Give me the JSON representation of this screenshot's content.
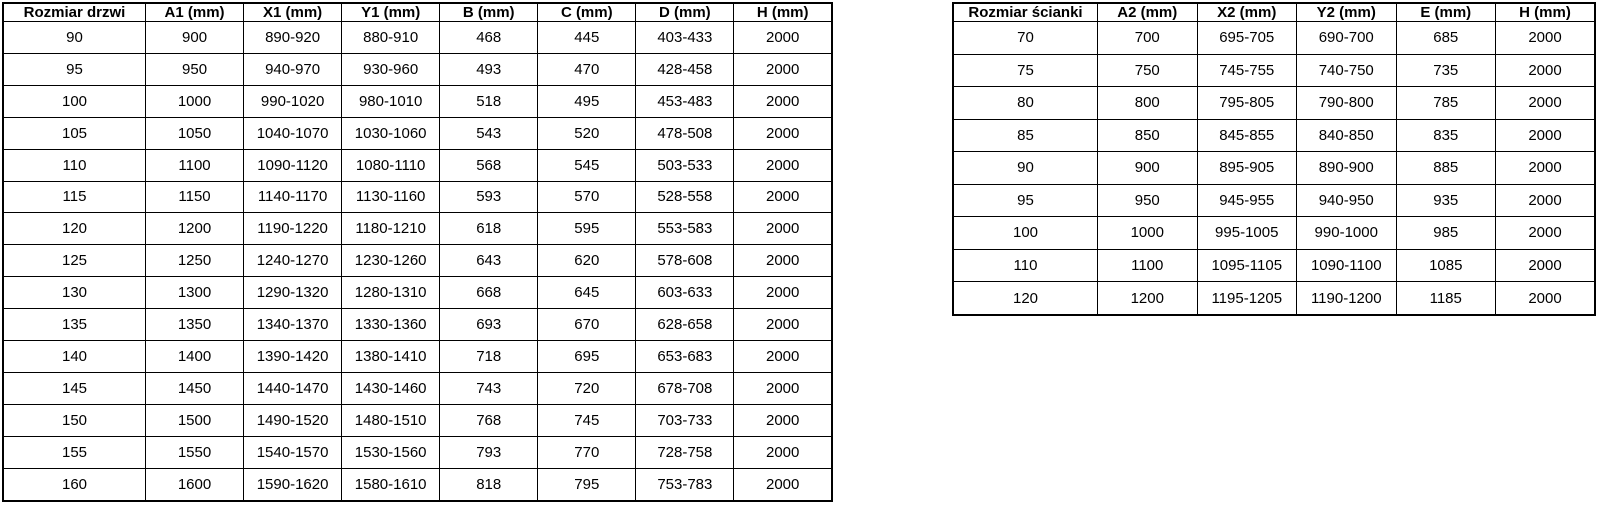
{
  "page": {
    "background_color": "#ffffff",
    "border_color": "#000000",
    "text_color": "#000000"
  },
  "chart_data": [
    {
      "type": "table",
      "headers": [
        "Rozmiar drzwi",
        "A1 (mm)",
        "X1 (mm)",
        "Y1 (mm)",
        "B (mm)",
        "C (mm)",
        "D (mm)",
        "H (mm)"
      ],
      "rows": [
        [
          "90",
          "900",
          "890-920",
          "880-910",
          "468",
          "445",
          "403-433",
          "2000"
        ],
        [
          "95",
          "950",
          "940-970",
          "930-960",
          "493",
          "470",
          "428-458",
          "2000"
        ],
        [
          "100",
          "1000",
          "990-1020",
          "980-1010",
          "518",
          "495",
          "453-483",
          "2000"
        ],
        [
          "105",
          "1050",
          "1040-1070",
          "1030-1060",
          "543",
          "520",
          "478-508",
          "2000"
        ],
        [
          "110",
          "1100",
          "1090-1120",
          "1080-1110",
          "568",
          "545",
          "503-533",
          "2000"
        ],
        [
          "115",
          "1150",
          "1140-1170",
          "1130-1160",
          "593",
          "570",
          "528-558",
          "2000"
        ],
        [
          "120",
          "1200",
          "1190-1220",
          "1180-1210",
          "618",
          "595",
          "553-583",
          "2000"
        ],
        [
          "125",
          "1250",
          "1240-1270",
          "1230-1260",
          "643",
          "620",
          "578-608",
          "2000"
        ],
        [
          "130",
          "1300",
          "1290-1320",
          "1280-1310",
          "668",
          "645",
          "603-633",
          "2000"
        ],
        [
          "135",
          "1350",
          "1340-1370",
          "1330-1360",
          "693",
          "670",
          "628-658",
          "2000"
        ],
        [
          "140",
          "1400",
          "1390-1420",
          "1380-1410",
          "718",
          "695",
          "653-683",
          "2000"
        ],
        [
          "145",
          "1450",
          "1440-1470",
          "1430-1460",
          "743",
          "720",
          "678-708",
          "2000"
        ],
        [
          "150",
          "1500",
          "1490-1520",
          "1480-1510",
          "768",
          "745",
          "703-733",
          "2000"
        ],
        [
          "155",
          "1550",
          "1540-1570",
          "1530-1560",
          "793",
          "770",
          "728-758",
          "2000"
        ],
        [
          "160",
          "1600",
          "1590-1620",
          "1580-1610",
          "818",
          "795",
          "753-783",
          "2000"
        ]
      ]
    },
    {
      "type": "table",
      "headers": [
        "Rozmiar ścianki",
        "A2 (mm)",
        "X2 (mm)",
        "Y2 (mm)",
        "E (mm)",
        "H (mm)"
      ],
      "rows": [
        [
          "70",
          "700",
          "695-705",
          "690-700",
          "685",
          "2000"
        ],
        [
          "75",
          "750",
          "745-755",
          "740-750",
          "735",
          "2000"
        ],
        [
          "80",
          "800",
          "795-805",
          "790-800",
          "785",
          "2000"
        ],
        [
          "85",
          "850",
          "845-855",
          "840-850",
          "835",
          "2000"
        ],
        [
          "90",
          "900",
          "895-905",
          "890-900",
          "885",
          "2000"
        ],
        [
          "95",
          "950",
          "945-955",
          "940-950",
          "935",
          "2000"
        ],
        [
          "100",
          "1000",
          "995-1005",
          "990-1000",
          "985",
          "2000"
        ],
        [
          "110",
          "1100",
          "1095-1105",
          "1090-1100",
          "1085",
          "2000"
        ],
        [
          "120",
          "1200",
          "1195-1205",
          "1190-1200",
          "1185",
          "2000"
        ]
      ]
    }
  ]
}
